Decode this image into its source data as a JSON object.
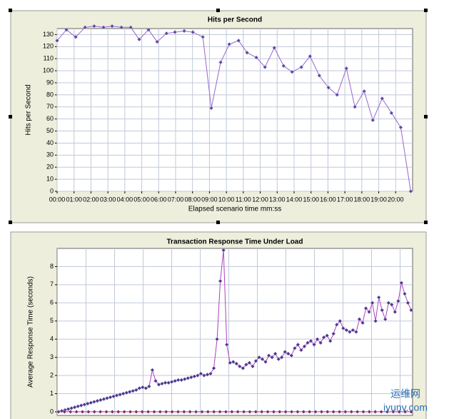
{
  "chart_data": [
    {
      "type": "line",
      "title": "Hits per Second",
      "ylabel": "Hits per Second",
      "xlabel": "Elapsed scenario time mm:ss",
      "x": [
        0,
        0.55,
        1.1,
        1.65,
        2.19,
        2.74,
        3.25,
        3.8,
        4.35,
        4.85,
        5.4,
        5.91,
        6.46,
        6.96,
        7.51,
        8.02,
        8.61,
        9.11,
        9.66,
        10.17,
        10.72,
        11.22,
        11.77,
        12.28,
        12.83,
        13.38,
        13.88,
        14.43,
        14.94,
        15.49,
        16.03,
        16.54,
        17.09,
        17.59,
        18.14,
        18.65,
        19.2,
        19.75,
        20.3,
        20.89
      ],
      "series": [
        {
          "color": "#9966cc",
          "marker": "#5a4a9a",
          "values": [
            125,
            134,
            128,
            136,
            137,
            136,
            137,
            136,
            136,
            126,
            134,
            124,
            131,
            132,
            133,
            132,
            128,
            69,
            107,
            122,
            125,
            115,
            111,
            103,
            119,
            104,
            99,
            103,
            112,
            96,
            86,
            80,
            102,
            70,
            83,
            59,
            77,
            65,
            53,
            0
          ]
        }
      ],
      "xlim": [
        0,
        21
      ],
      "ylim": [
        0,
        135
      ],
      "xticks": [
        {
          "value": 0,
          "label": "00:00"
        },
        {
          "value": 1,
          "label": "01:00"
        },
        {
          "value": 2,
          "label": "02:00"
        },
        {
          "value": 3,
          "label": "03:00"
        },
        {
          "value": 4,
          "label": "04:00"
        },
        {
          "value": 5,
          "label": "05:00"
        },
        {
          "value": 6,
          "label": "06:00"
        },
        {
          "value": 7,
          "label": "07:00"
        },
        {
          "value": 8,
          "label": "08:00"
        },
        {
          "value": 9,
          "label": "09:00"
        },
        {
          "value": 10,
          "label": "10:00"
        },
        {
          "value": 11,
          "label": "11:00"
        },
        {
          "value": 12,
          "label": "12:00"
        },
        {
          "value": 13,
          "label": "13:00"
        },
        {
          "value": 14,
          "label": "14:00"
        },
        {
          "value": 15,
          "label": "15:00"
        },
        {
          "value": 16,
          "label": "16:00"
        },
        {
          "value": 17,
          "label": "17:00"
        },
        {
          "value": 18,
          "label": "18:00"
        },
        {
          "value": 19,
          "label": "19:00"
        },
        {
          "value": 20,
          "label": "20:00"
        }
      ],
      "yticks": [
        0,
        10,
        20,
        30,
        40,
        50,
        60,
        70,
        80,
        90,
        100,
        110,
        120,
        130
      ],
      "grid": true
    },
    {
      "type": "line",
      "title": "Transaction Response Time Under Load",
      "ylabel": "Average Response Time (seconds)",
      "series": [
        {
          "color": "#b040c0",
          "marker": "#4a3a80",
          "values": [
            0,
            0.05,
            0.1,
            0.15,
            0.2,
            0.25,
            0.3,
            0.35,
            0.4,
            0.45,
            0.5,
            0.55,
            0.6,
            0.65,
            0.7,
            0.75,
            0.8,
            0.85,
            0.9,
            0.95,
            1.0,
            1.05,
            1.1,
            1.15,
            1.2,
            1.3,
            1.35,
            1.3,
            1.4,
            2.3,
            1.7,
            1.5,
            1.55,
            1.6,
            1.6,
            1.65,
            1.7,
            1.75,
            1.75,
            1.8,
            1.85,
            1.9,
            1.95,
            2.0,
            2.1,
            2.0,
            2.05,
            2.1,
            2.4,
            4.0,
            7.2,
            8.9,
            3.7,
            2.7,
            2.75,
            2.65,
            2.5,
            2.4,
            2.6,
            2.7,
            2.5,
            2.8,
            3.0,
            2.9,
            2.75,
            3.1,
            3.0,
            3.2,
            2.9,
            3.0,
            3.3,
            3.2,
            3.1,
            3.5,
            3.7,
            3.4,
            3.6,
            3.8,
            3.9,
            3.7,
            4.0,
            3.8,
            4.1,
            4.2,
            3.9,
            4.3,
            4.8,
            5.0,
            4.6,
            4.5,
            4.4,
            4.5,
            4.4,
            5.1,
            4.9,
            5.7,
            5.5,
            6.0,
            5.0,
            6.3,
            5.6,
            5.1,
            6.0,
            5.9,
            5.5,
            6.1,
            7.1,
            6.5,
            6.0,
            5.6
          ]
        },
        {
          "color": "#c03080",
          "marker": "#803060",
          "values": [
            0,
            0,
            0,
            0,
            0,
            0,
            0,
            0,
            0,
            0,
            0,
            0,
            0,
            0,
            0,
            0,
            0,
            0,
            0,
            0,
            0,
            0,
            0,
            0,
            0,
            0,
            0,
            0,
            0,
            0,
            0,
            0,
            0,
            0,
            0,
            0,
            0,
            0,
            0,
            0,
            0,
            0,
            0,
            0,
            0,
            0,
            0,
            0,
            0,
            0,
            0,
            0,
            0,
            0,
            0,
            0,
            0,
            0,
            0,
            0
          ]
        }
      ],
      "ylim": [
        -0.2,
        9
      ],
      "yticks": [
        0,
        1,
        2,
        3,
        4,
        5,
        6,
        7,
        8
      ],
      "grid": true
    }
  ],
  "watermark": [
    "运维网",
    "iyunv.com"
  ]
}
